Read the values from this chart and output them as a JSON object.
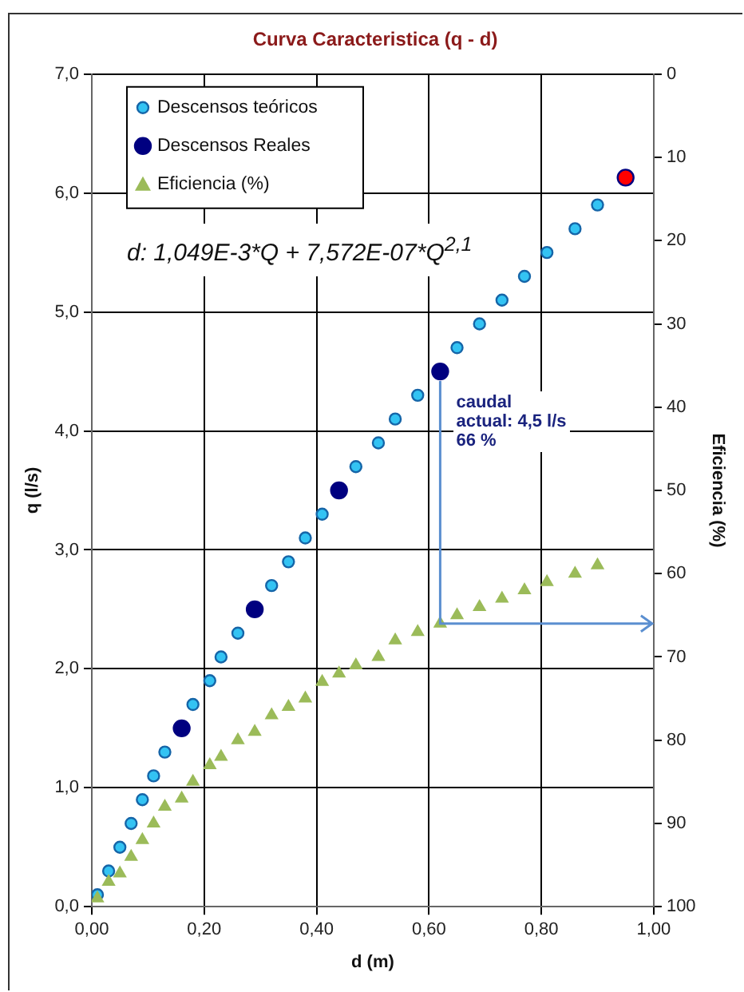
{
  "chart_data": {
    "type": "scatter",
    "title": "Curva Caracteristica (q - d)",
    "xlabel": "d (m)",
    "ylabel": "q (l/s)",
    "y2label": "Eficiencia (%)",
    "xlim": [
      0,
      1
    ],
    "xticks": [
      {
        "value": 0,
        "label": "0,00"
      },
      {
        "value": 0.2,
        "label": "0,20"
      },
      {
        "value": 0.4,
        "label": "0,40"
      },
      {
        "value": 0.6,
        "label": "0,60"
      },
      {
        "value": 0.8,
        "label": "0,80"
      },
      {
        "value": 1,
        "label": "1,00"
      }
    ],
    "ylim": [
      0,
      7
    ],
    "yticks": [
      {
        "value": 0,
        "label": "0,0"
      },
      {
        "value": 1,
        "label": "1,0"
      },
      {
        "value": 2,
        "label": "2,0"
      },
      {
        "value": 3,
        "label": "3,0"
      },
      {
        "value": 4,
        "label": "4,0"
      },
      {
        "value": 5,
        "label": "5,0"
      },
      {
        "value": 6,
        "label": "6,0"
      },
      {
        "value": 7,
        "label": "7,0"
      }
    ],
    "y2lim": [
      100,
      0
    ],
    "y2ticks": [
      0,
      10,
      20,
      30,
      40,
      50,
      60,
      70,
      80,
      90,
      100
    ],
    "grid": true,
    "legend": "top left",
    "series": [
      {
        "name": "Descensos teóricos",
        "color": "#33c3f3",
        "marker": "circle",
        "x": [
          0.01,
          0.03,
          0.05,
          0.07,
          0.09,
          0.11,
          0.13,
          0.16,
          0.18,
          0.21,
          0.23,
          0.26,
          0.29,
          0.32,
          0.35,
          0.38,
          0.41,
          0.44,
          0.47,
          0.51,
          0.54,
          0.58,
          0.62,
          0.65,
          0.69,
          0.73,
          0.77,
          0.81,
          0.86,
          0.9
        ],
        "values": [
          0.1,
          0.3,
          0.5,
          0.7,
          0.9,
          1.1,
          1.3,
          null,
          1.7,
          1.9,
          2.1,
          2.3,
          null,
          2.7,
          2.9,
          3.1,
          3.3,
          null,
          3.7,
          3.9,
          4.1,
          4.3,
          null,
          4.7,
          4.9,
          5.1,
          5.3,
          5.5,
          5.7,
          5.9
        ]
      },
      {
        "name": "Descensos Reales",
        "color": "#000080",
        "colors": [
          "#000080",
          "#000080",
          "#000080",
          "#000080",
          "#ff0000"
        ],
        "marker": "circle",
        "x": [
          0.16,
          0.29,
          0.44,
          0.62,
          0.95
        ],
        "values": [
          1.5,
          2.5,
          3.5,
          4.5,
          6.13
        ]
      },
      {
        "name": "Eficiencia (%)",
        "color": "#9bbb59",
        "marker": "triangle",
        "axis": "y2",
        "x": [
          0.01,
          0.03,
          0.05,
          0.07,
          0.09,
          0.11,
          0.13,
          0.16,
          0.18,
          0.21,
          0.23,
          0.26,
          0.29,
          0.32,
          0.35,
          0.38,
          0.41,
          0.44,
          0.47,
          0.51,
          0.54,
          0.58,
          0.62,
          0.65,
          0.69,
          0.73,
          0.77,
          0.81,
          0.86,
          0.9
        ],
        "values": [
          99,
          97,
          96,
          94,
          92,
          90,
          88,
          87,
          85,
          83,
          82,
          80,
          79,
          77,
          76,
          75,
          73,
          72,
          71,
          70,
          68,
          67,
          66,
          65,
          64,
          63,
          62,
          61,
          60,
          59
        ]
      }
    ],
    "annotations": [
      "d: 1,049E-3*Q + 7,572E-07*Q$^{2,1}$",
      {
        "text": "caudal\nactual: 4,5 l/s\n66 %",
        "x": 0.62,
        "y": 4.5
      }
    ]
  }
}
